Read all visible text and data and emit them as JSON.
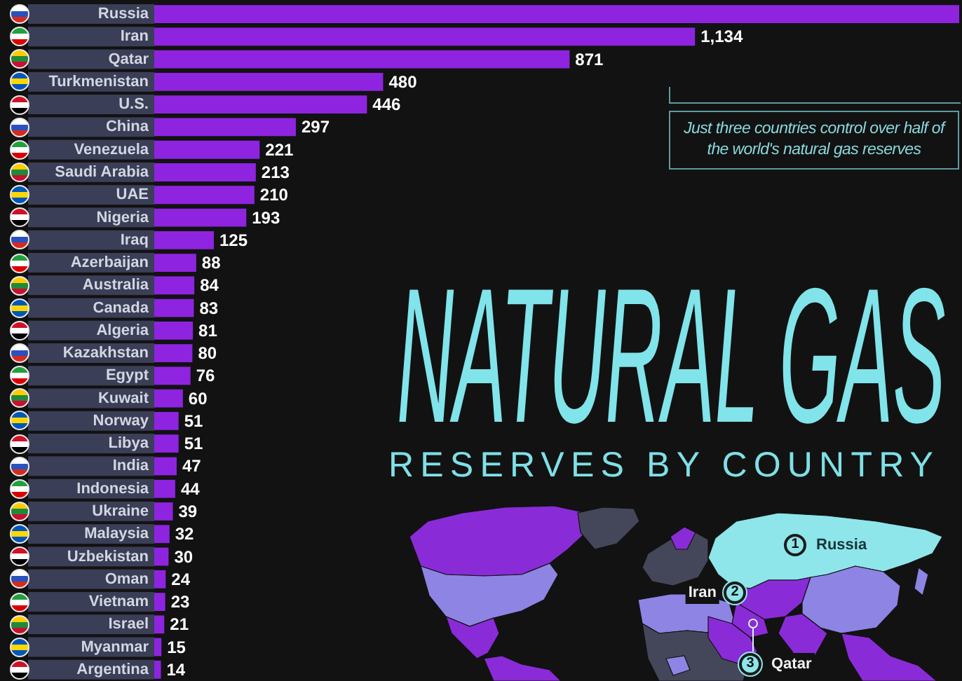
{
  "chart_data": {
    "type": "bar",
    "orientation": "horizontal",
    "title": "NATURAL GAS",
    "subtitle": "RESERVES BY COUNTRY",
    "categories": [
      "Russia",
      "Iran",
      "Qatar",
      "Turkmenistan",
      "U.S.",
      "China",
      "Venezuela",
      "Saudi Arabia",
      "UAE",
      "Nigeria",
      "Iraq",
      "Azerbaijan",
      "Australia",
      "Canada",
      "Algeria",
      "Kazakhstan",
      "Egypt",
      "Kuwait",
      "Norway",
      "Libya",
      "India",
      "Indonesia",
      "Ukraine",
      "Malaysia",
      "Uzbekistan",
      "Oman",
      "Vietnam",
      "Israel",
      "Myanmar",
      "Argentina"
    ],
    "values": [
      1688,
      1134,
      871,
      480,
      446,
      297,
      221,
      213,
      210,
      193,
      125,
      88,
      84,
      83,
      81,
      80,
      76,
      60,
      51,
      51,
      47,
      44,
      39,
      32,
      30,
      24,
      23,
      21,
      15,
      14
    ],
    "value_labels": [
      null,
      "1,134",
      "871",
      "480",
      "446",
      "297",
      "221",
      "213",
      "210",
      "193",
      "125",
      "88",
      "84",
      "83",
      "81",
      "80",
      "76",
      "60",
      "51",
      "51",
      "47",
      "44",
      "39",
      "32",
      "30",
      "24",
      "23",
      "21",
      "15",
      "14"
    ],
    "color": "#8e24e0",
    "annotations": [
      "Just three countries control over half of the world's natural gas reserves",
      "1",
      "Russia",
      "2",
      "Iran",
      "3",
      "Qatar"
    ]
  }
}
